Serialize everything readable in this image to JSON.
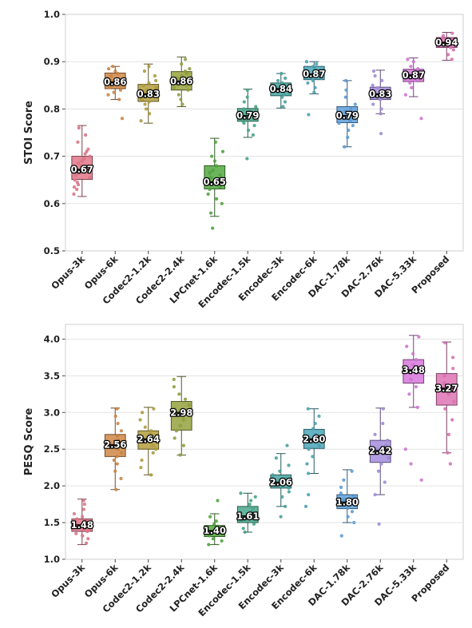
{
  "chart_data": [
    {
      "type": "box",
      "ylabel": "STOI Score",
      "ylim": [
        0.5,
        1.0
      ],
      "yticks": [
        "0.5",
        "0.6",
        "0.7",
        "0.8",
        "0.9",
        "1.0"
      ],
      "grid": true,
      "categories": [
        "Opus-3k",
        "Opus-6k",
        "Codec2-1.2k",
        "Codec2-2.4k",
        "LPCnet-1.6k",
        "Encodec-1.5k",
        "Encodec-3k",
        "Encodec-6k",
        "DAC-1.78k",
        "DAC-2.76k",
        "DAC-5.33k",
        "Proposed"
      ],
      "colors": [
        "#e2778a",
        "#cf8745",
        "#b39e3d",
        "#95a23d",
        "#52a83f",
        "#46a88b",
        "#47a5a0",
        "#4aa6b7",
        "#5d9fdb",
        "#a48ddd",
        "#d775db",
        "#df73b5"
      ],
      "series": [
        {
          "labels": [
            "0.67",
            "0.86",
            "0.83",
            "0.86",
            "0.65",
            "0.79",
            "0.84",
            "0.87",
            "0.79",
            "0.83",
            "0.87",
            "0.94"
          ],
          "stats": [
            {
              "q1": 0.651,
              "median": 0.672,
              "q3": 0.7,
              "whisker_low": 0.615,
              "whisker_high": 0.765,
              "points": [
                0.62,
                0.63,
                0.635,
                0.64,
                0.645,
                0.65,
                0.655,
                0.66,
                0.665,
                0.67,
                0.67,
                0.675,
                0.68,
                0.685,
                0.69,
                0.695,
                0.7,
                0.705,
                0.71,
                0.715,
                0.73,
                0.745,
                0.76
              ]
            },
            {
              "q1": 0.843,
              "median": 0.857,
              "q3": 0.876,
              "whisker_low": 0.82,
              "whisker_high": 0.89,
              "points": [
                0.78,
                0.82,
                0.83,
                0.835,
                0.84,
                0.845,
                0.85,
                0.855,
                0.855,
                0.86,
                0.86,
                0.865,
                0.87,
                0.875,
                0.88,
                0.885,
                0.89
              ]
            },
            {
              "q1": 0.816,
              "median": 0.832,
              "q3": 0.852,
              "whisker_low": 0.77,
              "whisker_high": 0.895,
              "points": [
                0.775,
                0.79,
                0.8,
                0.81,
                0.815,
                0.82,
                0.825,
                0.83,
                0.835,
                0.84,
                0.845,
                0.85,
                0.855,
                0.86,
                0.87,
                0.88,
                0.89
              ]
            },
            {
              "q1": 0.84,
              "median": 0.859,
              "q3": 0.879,
              "whisker_low": 0.805,
              "whisker_high": 0.91,
              "points": [
                0.81,
                0.82,
                0.83,
                0.84,
                0.845,
                0.85,
                0.855,
                0.86,
                0.865,
                0.87,
                0.875,
                0.88,
                0.885,
                0.895,
                0.905
              ]
            },
            {
              "q1": 0.631,
              "median": 0.646,
              "q3": 0.68,
              "whisker_low": 0.573,
              "whisker_high": 0.738,
              "points": [
                0.548,
                0.58,
                0.6,
                0.61,
                0.62,
                0.63,
                0.635,
                0.64,
                0.645,
                0.65,
                0.655,
                0.66,
                0.665,
                0.67,
                0.68,
                0.69,
                0.7,
                0.71,
                0.73
              ]
            },
            {
              "q1": 0.774,
              "median": 0.786,
              "q3": 0.801,
              "whisker_low": 0.74,
              "whisker_high": 0.842,
              "points": [
                0.695,
                0.745,
                0.755,
                0.765,
                0.77,
                0.775,
                0.78,
                0.785,
                0.79,
                0.795,
                0.8,
                0.805,
                0.815,
                0.825,
                0.84
              ]
            },
            {
              "q1": 0.828,
              "median": 0.843,
              "q3": 0.855,
              "whisker_low": 0.802,
              "whisker_high": 0.875,
              "points": [
                0.805,
                0.815,
                0.825,
                0.83,
                0.835,
                0.84,
                0.845,
                0.85,
                0.855,
                0.86,
                0.865,
                0.875
              ]
            },
            {
              "q1": 0.862,
              "median": 0.874,
              "q3": 0.89,
              "whisker_low": 0.832,
              "whisker_high": 0.9,
              "points": [
                0.788,
                0.835,
                0.845,
                0.855,
                0.86,
                0.865,
                0.87,
                0.875,
                0.88,
                0.885,
                0.89,
                0.895,
                0.9
              ]
            },
            {
              "q1": 0.771,
              "median": 0.786,
              "q3": 0.805,
              "whisker_low": 0.72,
              "whisker_high": 0.86,
              "points": [
                0.72,
                0.74,
                0.755,
                0.765,
                0.77,
                0.775,
                0.78,
                0.785,
                0.79,
                0.795,
                0.8,
                0.81,
                0.825,
                0.84,
                0.86
              ]
            },
            {
              "q1": 0.82,
              "median": 0.832,
              "q3": 0.846,
              "whisker_low": 0.79,
              "whisker_high": 0.882,
              "points": [
                0.748,
                0.79,
                0.8,
                0.81,
                0.82,
                0.825,
                0.83,
                0.835,
                0.84,
                0.845,
                0.85,
                0.86,
                0.87,
                0.88
              ]
            },
            {
              "q1": 0.858,
              "median": 0.872,
              "q3": 0.884,
              "whisker_low": 0.826,
              "whisker_high": 0.908,
              "points": [
                0.78,
                0.83,
                0.845,
                0.855,
                0.86,
                0.865,
                0.87,
                0.875,
                0.88,
                0.885,
                0.89,
                0.9,
                0.905
              ]
            },
            {
              "q1": 0.93,
              "median": 0.941,
              "q3": 0.951,
              "whisker_low": 0.903,
              "whisker_high": 0.962,
              "points": [
                0.905,
                0.915,
                0.925,
                0.93,
                0.935,
                0.94,
                0.942,
                0.945,
                0.95,
                0.955,
                0.96
              ]
            }
          ]
        }
      ]
    },
    {
      "type": "box",
      "ylabel": "PESQ Score",
      "ylim": [
        1.0,
        4.2
      ],
      "yticks": [
        "1.0",
        "1.5",
        "2.0",
        "2.5",
        "3.0",
        "3.5",
        "4.0"
      ],
      "grid": true,
      "categories": [
        "Opus-3k",
        "Opus-6k",
        "Codec2-1.2k",
        "Codec2-2.4k",
        "LPCnet-1.6k",
        "Encodec-1.5k",
        "Encodec-3k",
        "Encodec-6k",
        "DAC-1.78k",
        "DAC-2.76k",
        "DAC-5.33k",
        "Proposed"
      ],
      "colors": [
        "#e2778a",
        "#cf8745",
        "#b39e3d",
        "#95a23d",
        "#52a83f",
        "#46a88b",
        "#47a5a0",
        "#4aa6b7",
        "#5d9fdb",
        "#a48ddd",
        "#d775db",
        "#df73b5"
      ],
      "series": [
        {
          "labels": [
            "1.48",
            "2.56",
            "2.64",
            "2.98",
            "1.40",
            "1.61",
            "2.06",
            "2.60",
            "1.80",
            "2.42",
            "3.48",
            "3.27"
          ],
          "stats": [
            {
              "q1": 1.38,
              "median": 1.47,
              "q3": 1.55,
              "whisker_low": 1.2,
              "whisker_high": 1.82,
              "points": [
                1.22,
                1.28,
                1.32,
                1.35,
                1.38,
                1.4,
                1.42,
                1.45,
                1.47,
                1.5,
                1.52,
                1.55,
                1.58,
                1.62,
                1.68,
                1.75,
                1.8
              ]
            },
            {
              "q1": 2.4,
              "median": 2.56,
              "q3": 2.7,
              "whisker_low": 1.95,
              "whisker_high": 3.06,
              "points": [
                1.95,
                2.1,
                2.2,
                2.3,
                2.35,
                2.4,
                2.45,
                2.5,
                2.55,
                2.58,
                2.62,
                2.68,
                2.75,
                2.85,
                2.95,
                3.05
              ]
            },
            {
              "q1": 2.5,
              "median": 2.64,
              "q3": 2.75,
              "whisker_low": 2.15,
              "whisker_high": 3.07,
              "points": [
                2.15,
                2.25,
                2.35,
                2.45,
                2.5,
                2.55,
                2.6,
                2.65,
                2.7,
                2.75,
                2.8,
                2.9,
                3.0,
                3.05
              ]
            },
            {
              "q1": 2.76,
              "median": 3.0,
              "q3": 3.15,
              "whisker_low": 2.42,
              "whisker_high": 3.49,
              "points": [
                2.42,
                2.55,
                2.65,
                2.75,
                2.82,
                2.9,
                2.98,
                3.05,
                3.1,
                3.18,
                3.25,
                3.35,
                3.45
              ]
            },
            {
              "q1": 1.31,
              "median": 1.39,
              "q3": 1.46,
              "whisker_low": 1.2,
              "whisker_high": 1.62,
              "points": [
                1.2,
                1.25,
                1.28,
                1.32,
                1.35,
                1.38,
                1.4,
                1.42,
                1.45,
                1.48,
                1.52,
                1.58,
                1.8
              ]
            },
            {
              "q1": 1.5,
              "median": 1.59,
              "q3": 1.72,
              "whisker_low": 1.37,
              "whisker_high": 1.9,
              "points": [
                1.37,
                1.42,
                1.48,
                1.52,
                1.55,
                1.58,
                1.62,
                1.65,
                1.7,
                1.75,
                1.8,
                1.85,
                1.9
              ]
            },
            {
              "q1": 1.97,
              "median": 2.05,
              "q3": 2.15,
              "whisker_low": 1.72,
              "whisker_high": 2.44,
              "points": [
                1.58,
                1.72,
                1.85,
                1.92,
                1.97,
                2.02,
                2.05,
                2.1,
                2.15,
                2.2,
                2.28,
                2.38,
                2.55
              ]
            },
            {
              "q1": 2.51,
              "median": 2.64,
              "q3": 2.77,
              "whisker_low": 2.17,
              "whisker_high": 3.05,
              "points": [
                1.72,
                1.88,
                2.17,
                2.3,
                2.4,
                2.5,
                2.55,
                2.6,
                2.65,
                2.7,
                2.78,
                2.85,
                2.95,
                3.05
              ]
            },
            {
              "q1": 1.69,
              "median": 1.78,
              "q3": 1.88,
              "whisker_low": 1.5,
              "whisker_high": 2.22,
              "points": [
                1.32,
                1.5,
                1.58,
                1.65,
                1.7,
                1.75,
                1.78,
                1.82,
                1.85,
                1.9,
                1.98,
                2.08,
                2.2
              ]
            },
            {
              "q1": 2.32,
              "median": 2.48,
              "q3": 2.62,
              "whisker_low": 1.88,
              "whisker_high": 3.06,
              "points": [
                1.48,
                1.88,
                2.05,
                2.2,
                2.3,
                2.38,
                2.45,
                2.5,
                2.55,
                2.62,
                2.7,
                2.85,
                3.05
              ]
            },
            {
              "q1": 3.4,
              "median": 3.58,
              "q3": 3.72,
              "whisker_low": 3.07,
              "whisker_high": 4.05,
              "points": [
                2.08,
                2.3,
                2.5,
                3.07,
                3.25,
                3.35,
                3.45,
                3.55,
                3.6,
                3.65,
                3.72,
                3.8,
                3.9,
                4.03
              ]
            },
            {
              "q1": 3.1,
              "median": 3.33,
              "q3": 3.53,
              "whisker_low": 2.45,
              "whisker_high": 3.96,
              "points": [
                2.3,
                2.45,
                2.7,
                2.9,
                3.05,
                3.15,
                3.25,
                3.33,
                3.4,
                3.5,
                3.6,
                3.75,
                3.95
              ]
            }
          ]
        }
      ]
    }
  ]
}
